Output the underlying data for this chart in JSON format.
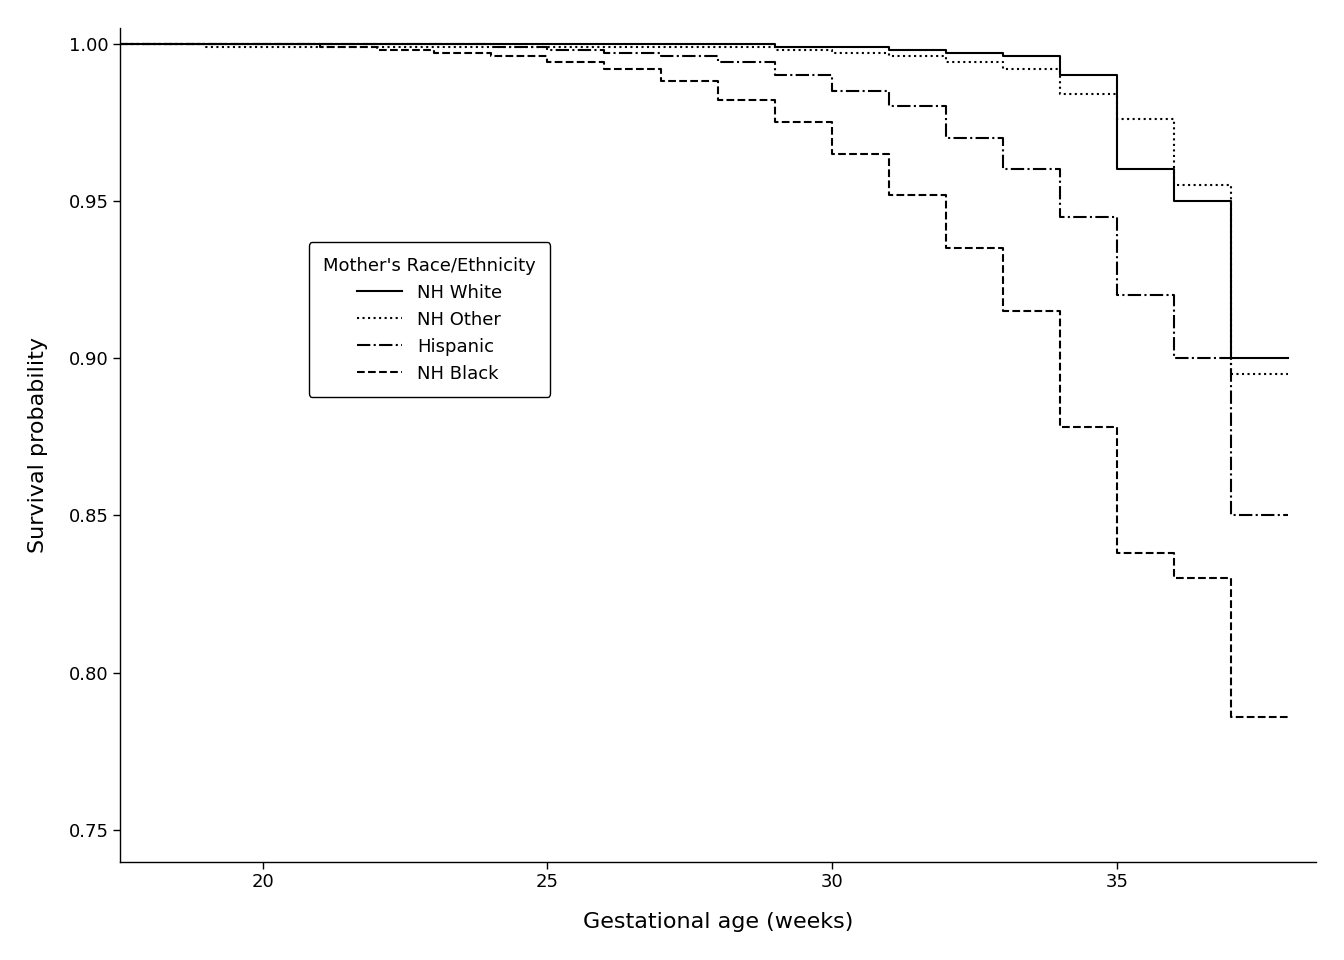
{
  "title": "",
  "xlabel": "Gestational age (weeks)",
  "ylabel": "Survival probability",
  "xlim": [
    17.5,
    38.5
  ],
  "ylim": [
    0.74,
    1.005
  ],
  "yticks": [
    0.75,
    0.8,
    0.85,
    0.9,
    0.95,
    1.0
  ],
  "xticks": [
    20,
    25,
    30,
    35
  ],
  "legend_title": "Mother's Race/Ethnicity",
  "legend_labels": [
    "NH White",
    "NH Other",
    "Hispanic",
    "NH Black"
  ],
  "line_styles": [
    "solid",
    "dotted",
    "dashdot",
    "dashed"
  ],
  "background_color": "#ffffff",
  "nh_white": {
    "x": [
      17.5,
      20,
      20,
      21,
      21,
      22,
      22,
      23,
      23,
      24,
      24,
      25,
      25,
      26,
      26,
      27,
      27,
      28,
      28,
      29,
      29,
      30,
      30,
      31,
      31,
      32,
      32,
      33,
      33,
      34,
      34,
      35,
      35,
      36,
      36,
      37,
      37,
      38
    ],
    "y": [
      1.0,
      1.0,
      1.0,
      1.0,
      1.0,
      1.0,
      1.0,
      1.0,
      1.0,
      1.0,
      1.0,
      1.0,
      1.0,
      1.0,
      1.0,
      1.0,
      1.0,
      1.0,
      1.0,
      1.0,
      0.999,
      0.999,
      0.999,
      0.999,
      0.998,
      0.998,
      0.997,
      0.997,
      0.996,
      0.996,
      0.99,
      0.99,
      0.96,
      0.96,
      0.95,
      0.95,
      0.9,
      0.9
    ]
  },
  "nh_other": {
    "x": [
      17.5,
      19,
      19,
      20,
      20,
      21,
      21,
      22,
      22,
      23,
      23,
      24,
      24,
      25,
      25,
      26,
      26,
      27,
      27,
      28,
      28,
      29,
      29,
      30,
      30,
      31,
      31,
      32,
      32,
      33,
      33,
      34,
      34,
      35,
      35,
      36,
      36,
      37,
      37,
      38
    ],
    "y": [
      1.0,
      1.0,
      0.999,
      0.999,
      0.999,
      0.999,
      0.999,
      0.999,
      0.999,
      0.999,
      0.999,
      0.999,
      0.999,
      0.999,
      0.999,
      0.999,
      0.999,
      0.999,
      0.999,
      0.999,
      0.999,
      0.999,
      0.998,
      0.998,
      0.997,
      0.997,
      0.996,
      0.996,
      0.994,
      0.994,
      0.992,
      0.992,
      0.984,
      0.984,
      0.976,
      0.976,
      0.955,
      0.955,
      0.895,
      0.895
    ]
  },
  "hispanic": {
    "x": [
      17.5,
      24,
      24,
      25,
      25,
      26,
      26,
      27,
      27,
      28,
      28,
      29,
      29,
      30,
      30,
      31,
      31,
      32,
      32,
      33,
      33,
      34,
      34,
      35,
      35,
      36,
      36,
      37,
      37,
      38
    ],
    "y": [
      1.0,
      1.0,
      0.999,
      0.999,
      0.998,
      0.998,
      0.997,
      0.997,
      0.996,
      0.996,
      0.994,
      0.994,
      0.99,
      0.99,
      0.985,
      0.985,
      0.98,
      0.98,
      0.97,
      0.97,
      0.96,
      0.96,
      0.945,
      0.945,
      0.92,
      0.92,
      0.9,
      0.9,
      0.85,
      0.85
    ]
  },
  "nh_black": {
    "x": [
      17.5,
      21,
      21,
      22,
      22,
      23,
      23,
      24,
      24,
      25,
      25,
      26,
      26,
      27,
      27,
      28,
      28,
      29,
      29,
      30,
      30,
      31,
      31,
      32,
      32,
      33,
      33,
      34,
      34,
      35,
      35,
      36,
      36,
      37,
      37,
      38
    ],
    "y": [
      1.0,
      1.0,
      0.999,
      0.999,
      0.998,
      0.998,
      0.997,
      0.997,
      0.996,
      0.996,
      0.994,
      0.994,
      0.992,
      0.992,
      0.988,
      0.988,
      0.982,
      0.982,
      0.975,
      0.975,
      0.965,
      0.965,
      0.952,
      0.952,
      0.935,
      0.935,
      0.915,
      0.915,
      0.878,
      0.878,
      0.838,
      0.838,
      0.83,
      0.83,
      0.786,
      0.786
    ]
  }
}
